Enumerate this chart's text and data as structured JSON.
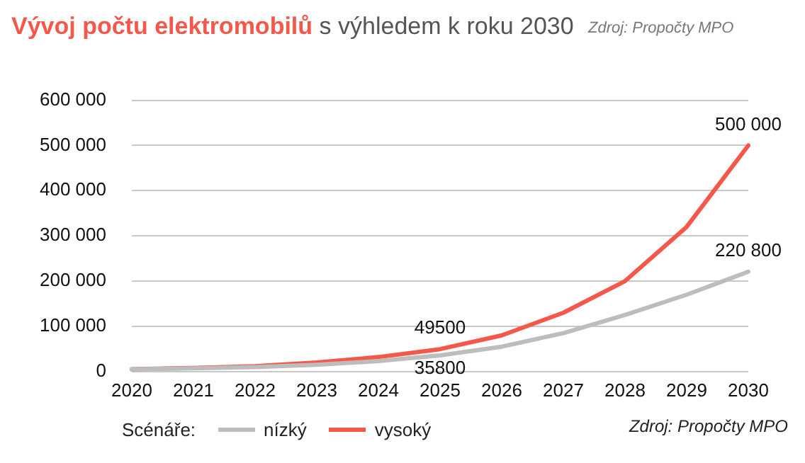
{
  "chart_data": {
    "type": "line",
    "title": "Vývoj počtu elektromobilů",
    "subtitle": "s výhledem k roku 2030",
    "legend_title": "Scénáře:",
    "annotations": [
      "Zdroj: Propočty MPO",
      "Zdroj: Propočty MPO"
    ],
    "categories": [
      "2020",
      "2021",
      "2022",
      "2023",
      "2024",
      "2025",
      "2026",
      "2027",
      "2028",
      "2029",
      "2030"
    ],
    "series": [
      {
        "name": "nízký",
        "color": "#bdbdbd",
        "values": [
          5000,
          7000,
          10000,
          15000,
          23000,
          35800,
          55000,
          85000,
          125000,
          170000,
          220800
        ],
        "value_labels": [
          null,
          null,
          null,
          null,
          null,
          "35800",
          null,
          null,
          null,
          null,
          "220 800"
        ]
      },
      {
        "name": "vysoký",
        "color": "#f4584a",
        "values": [
          5000,
          8000,
          12000,
          20000,
          32000,
          49500,
          80000,
          130000,
          200000,
          320000,
          500000
        ],
        "value_labels": [
          null,
          null,
          null,
          null,
          null,
          "49500",
          null,
          null,
          null,
          null,
          "500 000"
        ]
      }
    ],
    "ylim": [
      0,
      600000
    ],
    "yticks": [
      {
        "value": 0,
        "label": "0"
      },
      {
        "value": 100000,
        "label": "100 000"
      },
      {
        "value": 200000,
        "label": "200 000"
      },
      {
        "value": 300000,
        "label": "300 000"
      },
      {
        "value": 400000,
        "label": "400 000"
      },
      {
        "value": 500000,
        "label": "500 000"
      },
      {
        "value": 600000,
        "label": "600 000"
      }
    ],
    "grid": "y",
    "legend": "bottom",
    "marker": "none",
    "line_style": "solid"
  }
}
